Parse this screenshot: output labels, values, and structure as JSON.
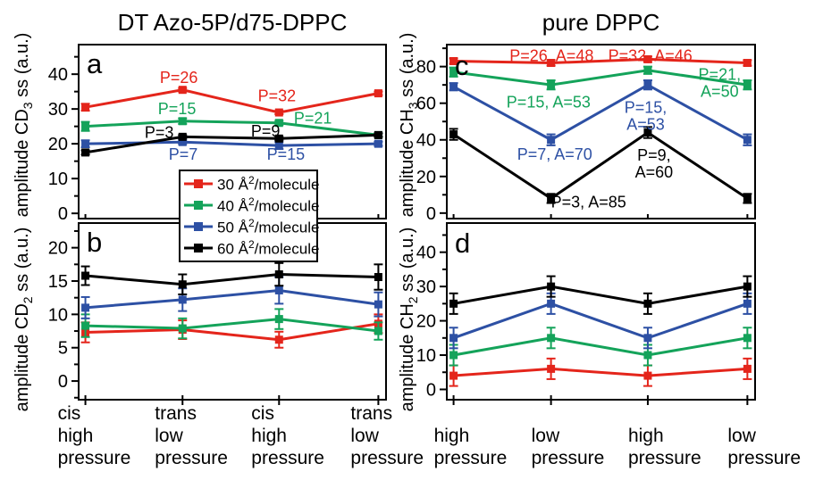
{
  "columns": [
    {
      "title": "DT Azo-5P/d75-DPPC"
    },
    {
      "title": "pure DPPC"
    }
  ],
  "colors": {
    "red": "#e4251b",
    "green": "#14a35a",
    "blue": "#2d50a4",
    "black": "#000000",
    "axis": "#000000",
    "background": "#ffffff"
  },
  "legend": {
    "items": [
      {
        "color": "red",
        "pre": "30 Å",
        "sup": "2",
        "post": "/molecule"
      },
      {
        "color": "green",
        "pre": "40 Å",
        "sup": "2",
        "post": "/molecule"
      },
      {
        "color": "blue",
        "pre": "50 Å",
        "sup": "2",
        "post": "/molecule"
      },
      {
        "color": "black",
        "pre": "60 Å",
        "sup": "2",
        "post": "/molecule"
      }
    ]
  },
  "chart_data": [
    {
      "letter": "a",
      "col": 0,
      "row": 0,
      "type": "line",
      "title": "DT Azo-5P/d75-DPPC",
      "ylabel": "amplitude CD3 ss (a.u.)",
      "ylabel_parts": {
        "pre": "amplitude CD",
        "sub": "3",
        "post": " ss (a.u.)"
      },
      "ylim": [
        -1.5,
        48.5
      ],
      "yticks": [
        0,
        10,
        20,
        30,
        40
      ],
      "yminor": 5,
      "categories": [
        "cis high pressure",
        "trans low pressure",
        "cis high pressure",
        "trans low pressure"
      ],
      "series": [
        {
          "name": "30 A2/molecule",
          "color": "red",
          "values": [
            30.5,
            35.5,
            29,
            34.5
          ],
          "err": [
            1,
            0.5,
            0.5,
            0.5
          ]
        },
        {
          "name": "40 A2/molecule",
          "color": "green",
          "values": [
            25,
            26.5,
            26,
            22.5
          ],
          "err": [
            1.3,
            0.8,
            0.6,
            0.5
          ]
        },
        {
          "name": "50 A2/molecule",
          "color": "blue",
          "values": [
            20,
            20.5,
            19.5,
            20
          ],
          "err": [
            1,
            0.6,
            1,
            0.6
          ]
        },
        {
          "name": "60 A2/molecule",
          "color": "black",
          "values": [
            17.5,
            22,
            21.5,
            22.5
          ],
          "err": [
            0.6,
            0.5,
            0.5,
            0.5
          ]
        }
      ],
      "annotations": [
        {
          "text": "P=26",
          "color": "red",
          "fx": 0.326,
          "y": 39
        },
        {
          "text": "P=15",
          "color": "green",
          "fx": 0.32,
          "y": 30
        },
        {
          "text": "P=3",
          "color": "black",
          "fx": 0.262,
          "y": 23.3
        },
        {
          "text": "P=7",
          "color": "blue",
          "fx": 0.34,
          "y": 16.9
        },
        {
          "text": "P=32",
          "color": "red",
          "fx": 0.645,
          "y": 33.8
        },
        {
          "text": "P=21",
          "color": "green",
          "fx": 0.762,
          "y": 27.4
        },
        {
          "text": "P=9",
          "color": "black",
          "fx": 0.608,
          "y": 23.6
        },
        {
          "text": "P=15",
          "color": "blue",
          "fx": 0.674,
          "y": 16.9
        }
      ]
    },
    {
      "letter": "b",
      "col": 0,
      "row": 1,
      "type": "line",
      "ylabel": "amplitude CD2 ss (a.u.)",
      "ylabel_parts": {
        "pre": "amplitude CD",
        "sub": "2",
        "post": " ss (a.u.)"
      },
      "ylim": [
        -2.8,
        23.7
      ],
      "yticks": [
        0,
        5,
        10,
        15,
        20
      ],
      "yminor": 2.5,
      "categories": [
        "cis high pressure",
        "trans low pressure",
        "cis high pressure",
        "trans low pressure"
      ],
      "xcat_lines": [
        [
          "cis",
          "high",
          "pressure"
        ],
        [
          "trans",
          "low",
          "pressure"
        ],
        [
          "cis",
          "high",
          "pressure"
        ],
        [
          "trans",
          "low",
          "pressure"
        ]
      ],
      "series": [
        {
          "name": "30 A2/molecule",
          "color": "red",
          "values": [
            7.3,
            7.7,
            6.2,
            8.6
          ],
          "err": [
            1.5,
            1.4,
            1.2,
            1.4
          ]
        },
        {
          "name": "40 A2/molecule",
          "color": "green",
          "values": [
            8.3,
            7.9,
            9.3,
            7.5
          ],
          "err": [
            1.7,
            1.5,
            1.5,
            1.3
          ]
        },
        {
          "name": "50 A2/molecule",
          "color": "blue",
          "values": [
            11,
            12.2,
            13.6,
            11.5
          ],
          "err": [
            1.6,
            1.7,
            2,
            1.8
          ]
        },
        {
          "name": "60 A2/molecule",
          "color": "black",
          "values": [
            15.8,
            14.5,
            16,
            15.6
          ],
          "err": [
            1.4,
            1.5,
            1.7,
            1.9
          ]
        }
      ],
      "annotations": []
    },
    {
      "letter": "c",
      "col": 1,
      "row": 0,
      "type": "line",
      "title": "pure DPPC",
      "ylabel": "amplitude CH3 ss (a.u.)",
      "ylabel_parts": {
        "pre": "amplitude CH",
        "sub": "3",
        "post": " ss (a.u.)"
      },
      "ylim": [
        -3,
        92
      ],
      "yticks": [
        0,
        20,
        40,
        60,
        80
      ],
      "yminor": 10,
      "categories": [
        "high pressure",
        "low pressure",
        "high pressure",
        "low pressure"
      ],
      "series": [
        {
          "name": "30 A2/molecule",
          "color": "red",
          "values": [
            83,
            82,
            84,
            82
          ],
          "err": [
            1.5,
            1.5,
            1.5,
            1.5
          ]
        },
        {
          "name": "40 A2/molecule",
          "color": "green",
          "values": [
            77,
            70,
            78,
            70
          ],
          "err": [
            2.5,
            2.5,
            2,
            2.5
          ]
        },
        {
          "name": "50 A2/molecule",
          "color": "blue",
          "values": [
            69,
            40,
            70,
            40
          ],
          "err": [
            2,
            3,
            2.5,
            3
          ]
        },
        {
          "name": "60 A2/molecule",
          "color": "black",
          "values": [
            43,
            8,
            44,
            8
          ],
          "err": [
            3,
            2.5,
            3,
            2.5
          ]
        }
      ],
      "annotations": [
        {
          "text": "P=26, A=48",
          "color": "red",
          "fx": 0.34,
          "y": 86
        },
        {
          "text": "P=32, A=46",
          "color": "red",
          "fx": 0.66,
          "y": 86
        },
        {
          "text": "P=15, A=53",
          "color": "green",
          "fx": 0.33,
          "y": 60.5
        },
        {
          "text": "P=21,\nA=50",
          "color": "green",
          "fx": 0.885,
          "y": 71
        },
        {
          "text": "P=7, A=70",
          "color": "blue",
          "fx": 0.35,
          "y": 32
        },
        {
          "text": "P=15,\nA=53",
          "color": "blue",
          "fx": 0.645,
          "y": 53
        },
        {
          "text": "P=3, A=85",
          "color": "black",
          "fx": 0.46,
          "y": 6
        },
        {
          "text": "P=9,\nA=60",
          "color": "black",
          "fx": 0.672,
          "y": 27
        }
      ]
    },
    {
      "letter": "d",
      "col": 1,
      "row": 1,
      "type": "line",
      "ylabel": "amplitude CH2 ss (a.u.)",
      "ylabel_parts": {
        "pre": "amplitude CH",
        "sub": "2",
        "post": " ss (a.u.)"
      },
      "ylim": [
        -3,
        48.5
      ],
      "yticks": [
        0,
        10,
        20,
        30,
        40
      ],
      "yminor": 5,
      "categories": [
        "high pressure",
        "low pressure",
        "high pressure",
        "low pressure"
      ],
      "xcat_lines": [
        [
          "high",
          "pressure"
        ],
        [
          "low",
          "pressure"
        ],
        [
          "high",
          "pressure"
        ],
        [
          "low",
          "pressure"
        ]
      ],
      "series": [
        {
          "name": "30 A2/molecule",
          "color": "red",
          "values": [
            4,
            6,
            4,
            6
          ],
          "err": [
            3,
            3,
            3,
            3
          ]
        },
        {
          "name": "40 A2/molecule",
          "color": "green",
          "values": [
            10,
            15,
            10,
            15
          ],
          "err": [
            3,
            3,
            3,
            3
          ]
        },
        {
          "name": "50 A2/molecule",
          "color": "blue",
          "values": [
            15,
            25,
            15,
            25
          ],
          "err": [
            3,
            3,
            3,
            3
          ]
        },
        {
          "name": "60 A2/molecule",
          "color": "black",
          "values": [
            25,
            30,
            25,
            30
          ],
          "err": [
            3,
            3,
            3,
            3
          ]
        }
      ],
      "annotations": []
    }
  ]
}
